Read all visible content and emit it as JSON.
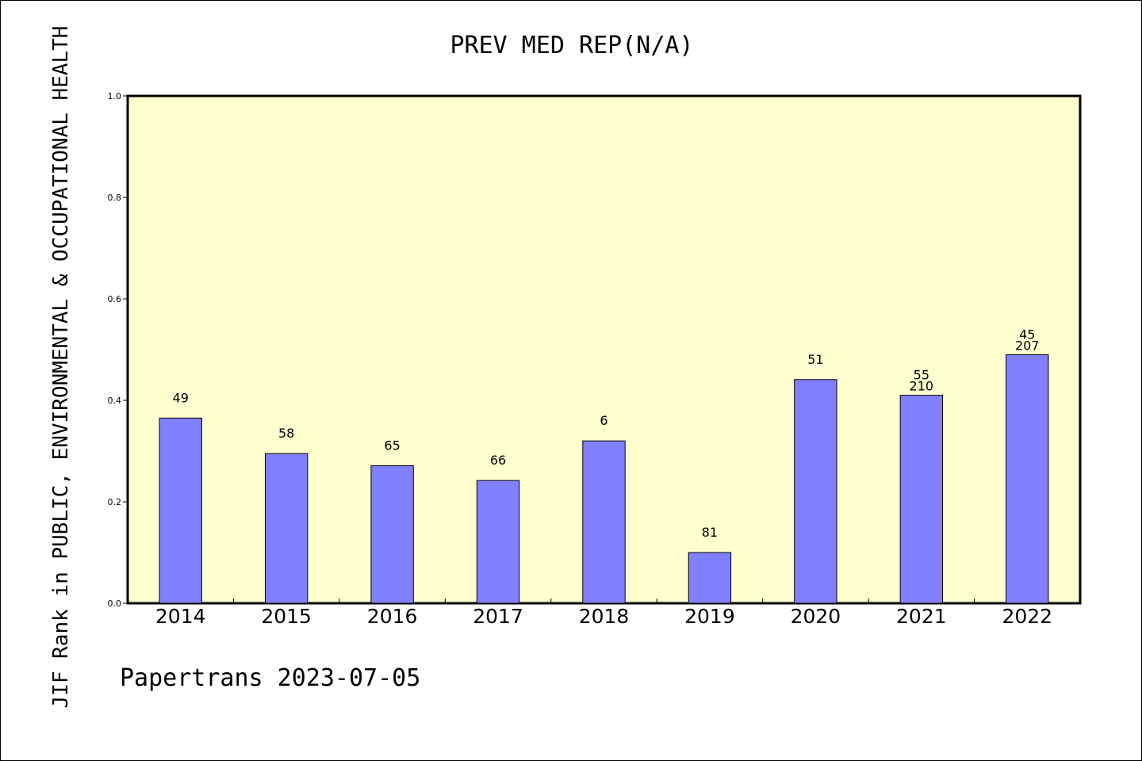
{
  "chart_data": {
    "type": "bar",
    "title": "PREV MED REP(N/A)",
    "ylabel": "JIF Rank in PUBLIC, ENVIRONMENTAL & OCCUPATIONAL HEALTH",
    "xlabel": "",
    "footer": "Papertrans 2023-07-05",
    "categories": [
      "2014",
      "2015",
      "2016",
      "2017",
      "2018",
      "2019",
      "2020",
      "2021",
      "2022"
    ],
    "values": [
      0.365,
      0.295,
      0.271,
      0.242,
      0.32,
      0.1,
      0.441,
      0.41,
      0.49
    ],
    "labels": [
      [
        "49"
      ],
      [
        "58"
      ],
      [
        "65"
      ],
      [
        "66"
      ],
      [
        "6"
      ],
      [
        "81"
      ],
      [
        "51"
      ],
      [
        "55",
        "210"
      ],
      [
        "45",
        "207"
      ]
    ],
    "ylim": [
      0,
      1.0
    ],
    "yticks": [
      "0.0",
      "0.2",
      "0.4",
      "0.6",
      "0.8",
      "1.0"
    ],
    "colors": {
      "plot_background": "#ffffd0",
      "bar_fill": "#8080ff",
      "bar_stroke": "#000000"
    },
    "grid": false,
    "legend": "none"
  }
}
